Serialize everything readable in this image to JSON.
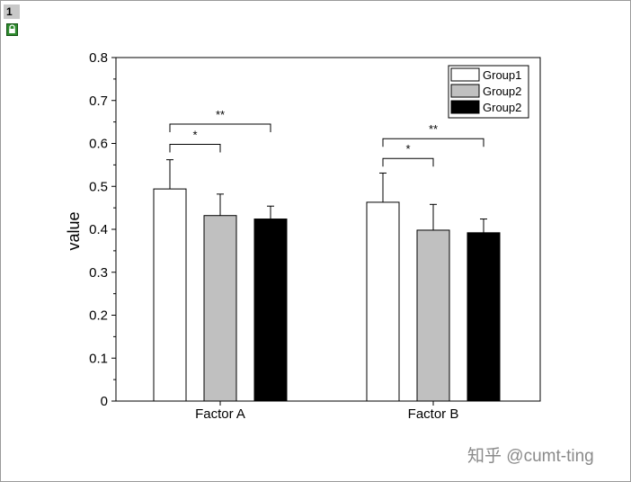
{
  "window": {
    "page_number": "1",
    "watermark": "知乎 @cumt-ting"
  },
  "chart_data": {
    "type": "bar",
    "ylabel": "value",
    "xlabel": "",
    "ylim": [
      0,
      0.8
    ],
    "yticks": [
      "0",
      "0.1",
      "0.2",
      "0.3",
      "0.4",
      "0.5",
      "0.6",
      "0.7",
      "0.8"
    ],
    "categories": [
      "Factor A",
      "Factor B"
    ],
    "series": [
      {
        "name": "Group1",
        "color": "#ffffff",
        "values": [
          0.494,
          0.463
        ],
        "errors": [
          0.068,
          0.068
        ]
      },
      {
        "name": "Group2",
        "color": "#c0c0c0",
        "values": [
          0.432,
          0.398
        ],
        "errors": [
          0.05,
          0.06
        ]
      },
      {
        "name": "Group2",
        "color": "#000000",
        "values": [
          0.424,
          0.392
        ],
        "errors": [
          0.03,
          0.032
        ]
      }
    ],
    "legend_position": "top-right",
    "significance": [
      {
        "category": 0,
        "from": 0,
        "to": 1,
        "label": "*",
        "y": 0.598
      },
      {
        "category": 0,
        "from": 0,
        "to": 2,
        "label": "**",
        "y": 0.645
      },
      {
        "category": 1,
        "from": 0,
        "to": 1,
        "label": "*",
        "y": 0.565
      },
      {
        "category": 1,
        "from": 0,
        "to": 2,
        "label": "**",
        "y": 0.611
      }
    ]
  }
}
